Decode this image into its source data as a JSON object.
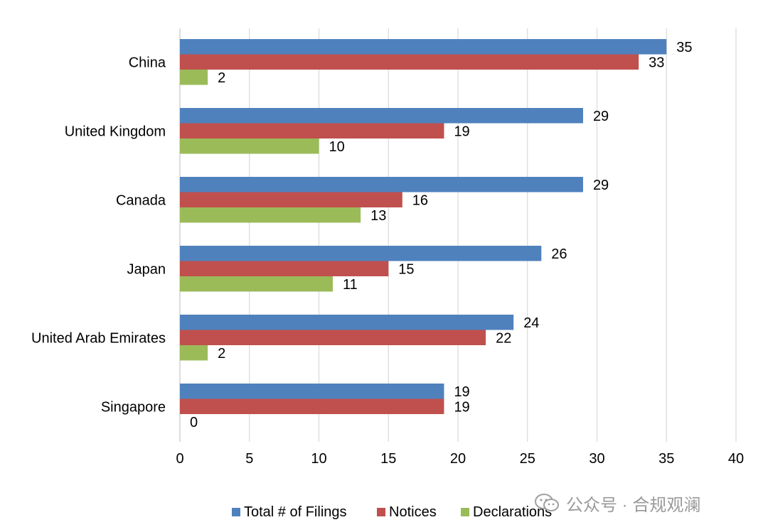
{
  "chart_data": {
    "type": "bar",
    "orientation": "horizontal",
    "categories": [
      "China",
      "United Kingdom",
      "Canada",
      "Japan",
      "United Arab Emirates",
      "Singapore"
    ],
    "series": [
      {
        "name": "Total # of Filings",
        "values": [
          35,
          29,
          29,
          26,
          24,
          19
        ],
        "color": "#4F81BD"
      },
      {
        "name": "Notices",
        "values": [
          33,
          19,
          16,
          15,
          22,
          19
        ],
        "color": "#C0504D"
      },
      {
        "name": "Declarations",
        "values": [
          2,
          10,
          13,
          11,
          2,
          0
        ],
        "color": "#9BBB59"
      }
    ],
    "xlim": [
      0,
      40
    ],
    "xticks": [
      "0",
      "5",
      "10",
      "15",
      "20",
      "25",
      "30",
      "35",
      "40"
    ],
    "grid": "vertical",
    "legend_position": "bottom"
  },
  "watermark": {
    "text": "公众号 · 合规观澜"
  }
}
